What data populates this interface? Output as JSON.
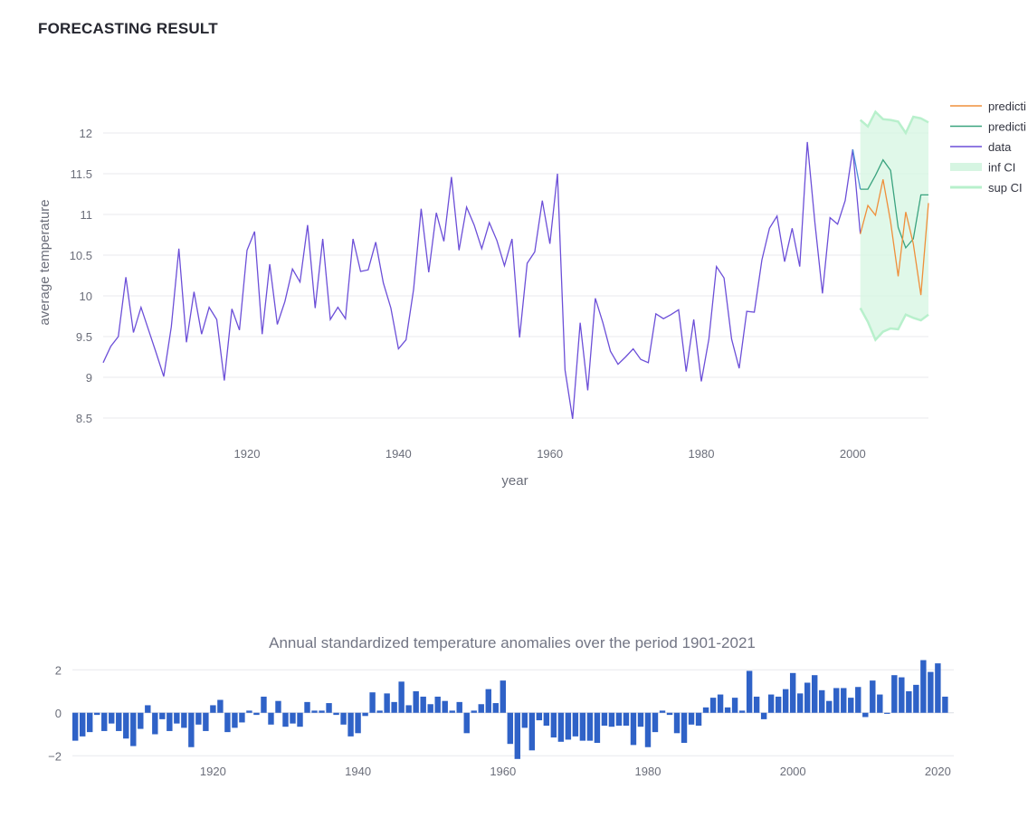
{
  "page": {
    "heading": "FORECASTING RESULT"
  },
  "colors": {
    "data": "#6c4fd8",
    "prediction_1": "#ef8f3b",
    "prediction_2": "#3aa37f",
    "ci_fill": "#d6f5e2",
    "ci_line": "#b8f0cc",
    "bars": "#2f62c7",
    "grid": "#e8e9ee",
    "tick": "#6b6e7a",
    "title": "#727584"
  },
  "chart_data": [
    {
      "type": "line",
      "title": "",
      "xlabel": "year",
      "ylabel": "average temperature",
      "xlim": [
        1901,
        2010
      ],
      "ylim": [
        8.3,
        12.3
      ],
      "x_ticks": [
        1920,
        1940,
        1960,
        1980,
        2000
      ],
      "y_ticks": [
        8.5,
        9,
        9.5,
        10,
        10.5,
        11,
        11.5,
        12
      ],
      "grid": true,
      "legend_position": "top-right",
      "legend": [
        "predicti",
        "predicti",
        "data",
        "inf CI",
        "sup CI"
      ],
      "series": [
        {
          "name": "data",
          "x_start": 1901,
          "values": [
            9.18,
            9.38,
            9.5,
            10.23,
            9.55,
            9.86,
            9.58,
            9.3,
            9.01,
            9.62,
            10.58,
            9.43,
            10.05,
            9.53,
            9.86,
            9.71,
            8.96,
            9.84,
            9.58,
            10.56,
            10.79,
            9.53,
            10.39,
            9.65,
            9.93,
            10.33,
            10.17,
            10.87,
            9.85,
            10.7,
            9.71,
            9.86,
            9.72,
            10.7,
            10.3,
            10.32,
            10.66,
            10.16,
            9.85,
            9.35,
            9.46,
            10.08,
            11.07,
            10.29,
            11.02,
            10.67,
            11.46,
            10.56,
            11.09,
            10.87,
            10.58,
            10.9,
            10.68,
            10.37,
            10.7,
            9.49,
            10.4,
            10.54,
            11.17,
            10.64,
            11.5,
            9.09,
            8.49,
            9.67,
            8.84,
            9.97,
            9.67,
            9.32,
            9.16,
            9.25,
            9.35,
            9.22,
            9.18,
            9.78,
            9.72,
            9.77,
            9.83,
            9.07,
            9.71,
            8.95,
            9.47,
            10.36,
            10.22,
            9.47,
            9.11,
            9.81,
            9.8,
            10.44,
            10.83,
            10.98,
            10.42,
            10.83,
            10.36,
            11.89,
            10.9,
            10.03,
            10.96,
            10.88,
            11.17,
            11.8,
            10.76
          ]
        },
        {
          "name": "predicti",
          "x_start": 2001,
          "values": [
            10.76,
            11.11,
            10.99,
            11.43,
            10.91,
            10.24,
            11.03,
            10.64,
            10.01,
            11.14
          ]
        },
        {
          "name": "predicti",
          "x_start": 2001,
          "values": [
            11.31,
            11.31,
            11.48,
            11.67,
            11.54,
            10.84,
            10.59,
            10.7,
            11.24,
            11.24
          ]
        },
        {
          "name": "inf CI",
          "x_start": 2001,
          "values": [
            9.85,
            9.68,
            9.46,
            9.56,
            9.6,
            9.59,
            9.77,
            9.73,
            9.7,
            9.77
          ]
        },
        {
          "name": "sup CI",
          "x_start": 2001,
          "values": [
            12.16,
            12.08,
            12.26,
            12.17,
            12.16,
            12.14,
            12.0,
            12.2,
            12.18,
            12.13
          ]
        }
      ]
    },
    {
      "type": "bar",
      "title": "Annual standardized temperature anomalies over the period 1901-2021",
      "xlabel": "",
      "ylabel": "",
      "xlim": [
        1900.6,
        2022.2
      ],
      "ylim": [
        -2.2,
        2.6
      ],
      "x_ticks": [
        1920,
        1940,
        1960,
        1980,
        2000,
        2020
      ],
      "y_ticks": [
        -2,
        0,
        2
      ],
      "y_tick_labels": [
        "−2",
        "0",
        "2"
      ],
      "grid": true,
      "x_start": 1901,
      "values": [
        -1.3,
        -1.1,
        -0.9,
        -0.1,
        -0.85,
        -0.5,
        -0.85,
        -1.2,
        -1.55,
        -0.75,
        0.35,
        -1.0,
        -0.3,
        -0.85,
        -0.5,
        -0.7,
        -1.6,
        -0.55,
        -0.85,
        0.35,
        0.6,
        -0.9,
        -0.7,
        -0.45,
        0.1,
        -0.1,
        0.75,
        -0.55,
        0.55,
        -0.65,
        -0.5,
        -0.65,
        0.5,
        0.1,
        0.1,
        0.45,
        -0.1,
        -0.55,
        -1.1,
        -0.95,
        -0.15,
        0.95,
        0.1,
        0.9,
        0.5,
        1.45,
        0.35,
        1.0,
        0.75,
        0.4,
        0.75,
        0.55,
        0.1,
        0.5,
        -0.95,
        0.1,
        0.4,
        1.1,
        0.45,
        1.5,
        -1.45,
        -2.15,
        -0.7,
        -1.75,
        -0.35,
        -0.6,
        -1.15,
        -1.35,
        -1.25,
        -1.1,
        -1.3,
        -1.3,
        -1.4,
        -0.6,
        -0.65,
        -0.6,
        -0.6,
        -1.5,
        -0.65,
        -1.6,
        -0.9,
        0.1,
        -0.1,
        -0.95,
        -1.4,
        -0.55,
        -0.6,
        0.25,
        0.7,
        0.85,
        0.25,
        0.7,
        0.1,
        1.95,
        0.75,
        -0.3,
        0.85,
        0.75,
        1.1,
        1.85,
        0.9,
        1.4,
        1.75,
        1.05,
        0.55,
        1.15,
        1.15,
        0.7,
        1.2,
        -0.2,
        1.5,
        0.85,
        -0.05,
        1.75,
        1.65,
        1.0,
        1.3,
        2.45,
        1.9,
        2.3,
        0.75
      ]
    }
  ]
}
